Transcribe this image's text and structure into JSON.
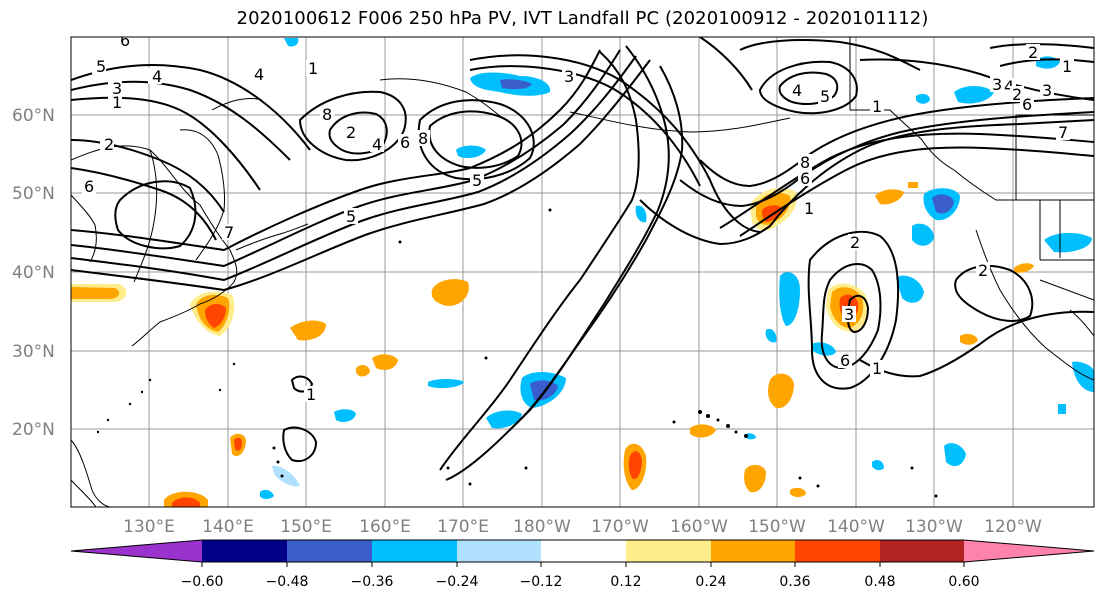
{
  "title": "2020100612 F006 250 hPa PV, IVT Landfall PC (2020100912 - 2020101112)",
  "map": {
    "lat_labels": [
      "60°N",
      "50°N",
      "40°N",
      "30°N",
      "20°N"
    ],
    "lon_labels": [
      "130°E",
      "140°E",
      "150°E",
      "160°E",
      "170°E",
      "180°W",
      "170°W",
      "160°W",
      "150°W",
      "140°W",
      "130°W",
      "120°W"
    ],
    "contour_labels": [
      "6",
      "5",
      "4",
      "3",
      "1",
      "2",
      "6",
      "4",
      "1",
      "8",
      "2",
      "4",
      "6",
      "8",
      "7",
      "5",
      "3",
      "4",
      "5",
      "1",
      "8",
      "6",
      "1",
      "2",
      "3",
      "6",
      "7",
      "2",
      "1",
      "3",
      "2",
      "1",
      "1",
      "5",
      "4",
      "3",
      "2",
      "6"
    ]
  },
  "colorbar": {
    "tick_labels": [
      "−0.60",
      "−0.48",
      "−0.36",
      "−0.24",
      "−0.12",
      "0.12",
      "0.24",
      "0.36",
      "0.48",
      "0.60"
    ],
    "colors": [
      "#9a32cd",
      "#00008b",
      "#3a5fcd",
      "#00bfff",
      "#b0e2ff",
      "#ffffff",
      "#ffec8b",
      "#ffa500",
      "#ff4500",
      "#b22222",
      "#ff82ab"
    ]
  }
}
